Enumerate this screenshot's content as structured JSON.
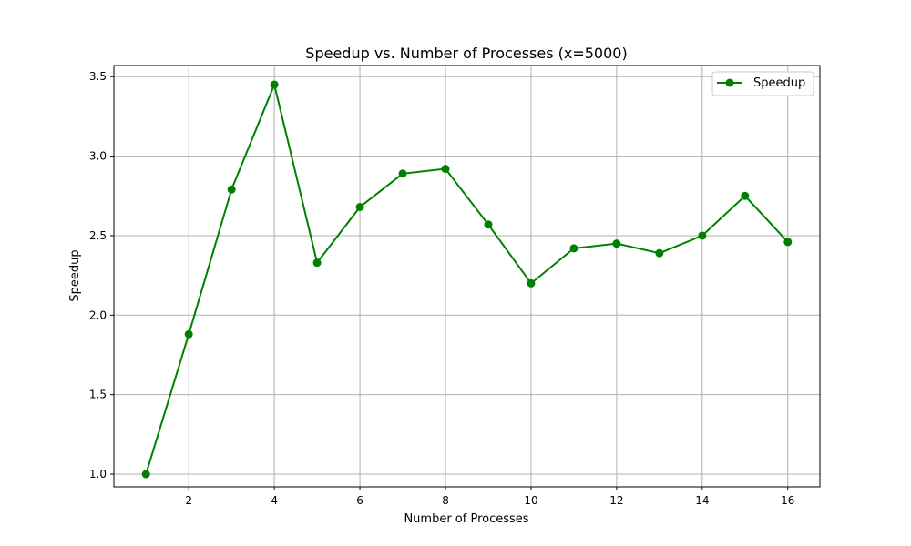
{
  "chart_data": {
    "type": "line",
    "title": "Speedup vs. Number of Processes (x=5000)",
    "xlabel": "Number of Processes",
    "ylabel": "Speedup",
    "x": [
      1,
      2,
      3,
      4,
      5,
      6,
      7,
      8,
      9,
      10,
      11,
      12,
      13,
      14,
      15,
      16
    ],
    "series": [
      {
        "name": "Speedup",
        "color": "#008000",
        "values": [
          1.0,
          1.88,
          2.79,
          3.45,
          2.33,
          2.68,
          2.89,
          2.92,
          2.57,
          2.2,
          2.42,
          2.45,
          2.39,
          2.5,
          2.75,
          2.46
        ]
      }
    ],
    "xlim": [
      0.25,
      16.75
    ],
    "ylim": [
      0.92,
      3.57
    ],
    "xticks": [
      2,
      4,
      6,
      8,
      10,
      12,
      14,
      16
    ],
    "xtick_labels": [
      "2",
      "4",
      "6",
      "8",
      "10",
      "12",
      "14",
      "16"
    ],
    "yticks": [
      1.0,
      1.5,
      2.0,
      2.5,
      3.0,
      3.5
    ],
    "ytick_labels": [
      "1.0",
      "1.5",
      "2.0",
      "2.5",
      "3.0",
      "3.5"
    ],
    "grid": true,
    "legend_position": "top-right",
    "marker": "circle"
  }
}
